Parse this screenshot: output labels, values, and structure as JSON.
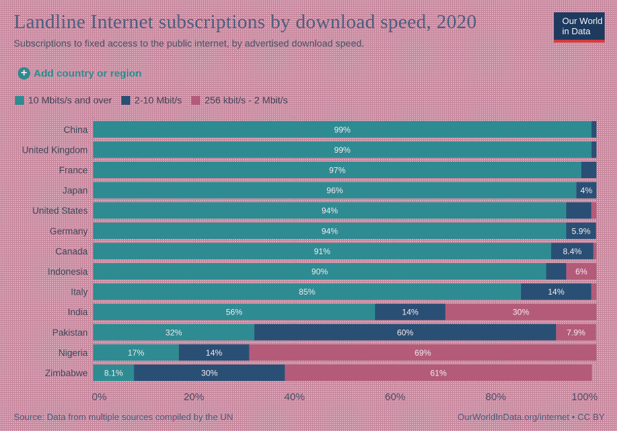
{
  "header": {
    "title": "Landline Internet subscriptions by download speed, 2020",
    "subtitle": "Subscriptions to fixed access to the public internet, by advertised download speed.",
    "logo_line1": "Our World",
    "logo_line2": "in Data"
  },
  "controls": {
    "add_country_label": "Add country or region",
    "add_icon": "plus-circle-icon"
  },
  "legend": {
    "items": [
      {
        "label": "10 Mbits/s and over",
        "color": "#2e8b92"
      },
      {
        "label": "2-10 Mbit/s",
        "color": "#2a4f74"
      },
      {
        "label": "256 kbit/s - 2 Mbit/s",
        "color": "#b45b7a"
      }
    ]
  },
  "footer": {
    "source": "Source: Data from multiple sources compiled by the UN",
    "link": "OurWorldInData.org/internet • CC BY"
  },
  "chart_data": {
    "type": "bar",
    "orientation": "horizontal",
    "stacked": true,
    "categories": [
      "China",
      "United Kingdom",
      "France",
      "Japan",
      "United States",
      "Germany",
      "Canada",
      "Indonesia",
      "Italy",
      "India",
      "Pakistan",
      "Nigeria",
      "Zimbabwe"
    ],
    "series": [
      {
        "name": "10 Mbits/s and over",
        "color": "#2e8b92",
        "values": [
          99,
          99,
          97,
          96,
          94,
          94,
          91,
          90,
          85,
          56,
          32,
          17,
          8.1
        ],
        "labels": [
          "99%",
          "99%",
          "97%",
          "96%",
          "94%",
          "94%",
          "91%",
          "90%",
          "85%",
          "56%",
          "32%",
          "17%",
          "8.1%"
        ]
      },
      {
        "name": "2-10 Mbit/s",
        "color": "#2a4f74",
        "values": [
          1,
          1,
          3,
          4,
          5,
          5.9,
          8.4,
          4,
          14,
          14,
          60,
          14,
          30
        ],
        "labels": [
          "",
          "",
          "",
          "4%",
          "",
          "5.9%",
          "8.4%",
          "",
          "14%",
          "14%",
          "60%",
          "14%",
          "30%"
        ]
      },
      {
        "name": "256 kbit/s - 2 Mbit/s",
        "color": "#b45b7a",
        "values": [
          0,
          0,
          0,
          0,
          1,
          0.1,
          0.6,
          6,
          1,
          30,
          7.9,
          69,
          61
        ],
        "labels": [
          "",
          "",
          "",
          "",
          "",
          "",
          "",
          "6%",
          "",
          "30%",
          "7.9%",
          "69%",
          "61%"
        ]
      }
    ],
    "xlim": [
      0,
      100
    ],
    "xticks": [
      "0%",
      "20%",
      "40%",
      "60%",
      "80%",
      "100%"
    ],
    "grid": true
  }
}
